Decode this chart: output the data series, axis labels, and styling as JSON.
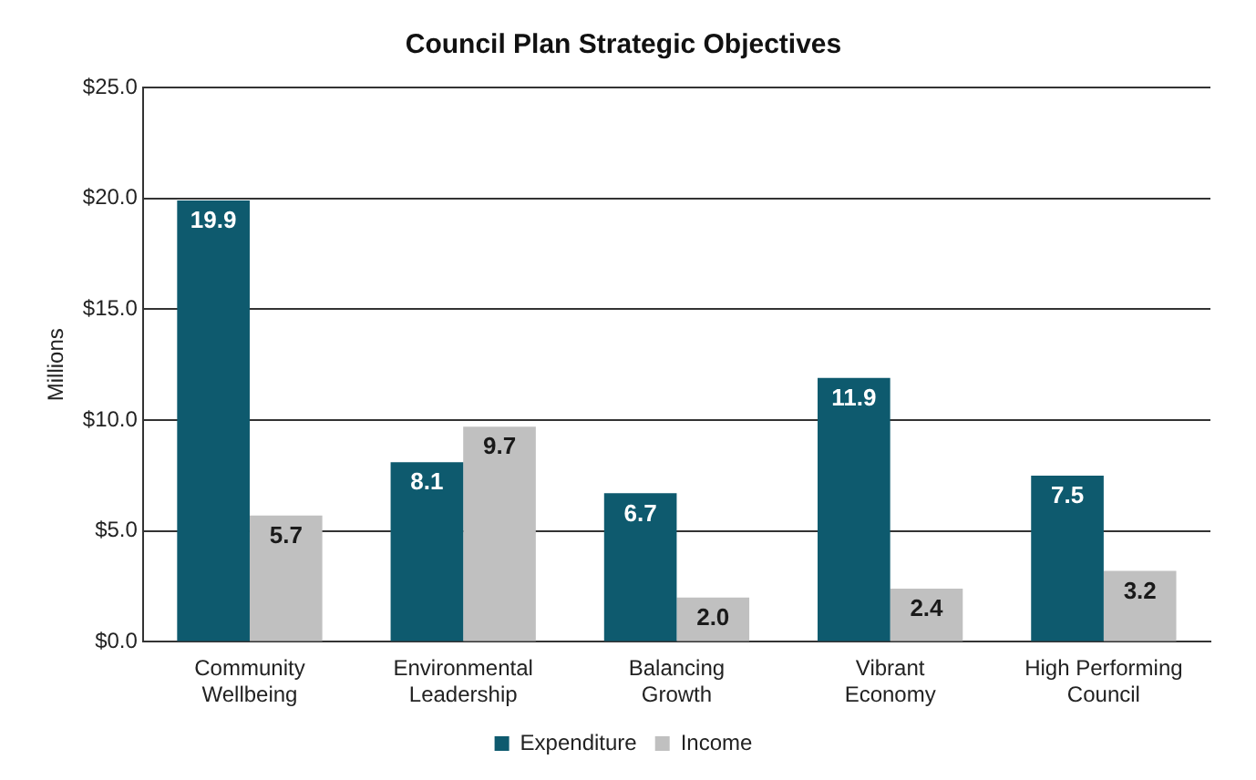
{
  "chart_data": {
    "type": "bar",
    "title": "Council Plan Strategic Objectives",
    "ylabel": "Millions",
    "categories": [
      "Community Wellbeing",
      "Environmental Leadership",
      "Balancing Growth",
      "Vibrant Economy",
      "High Performing Council"
    ],
    "series": [
      {
        "name": "Expenditure",
        "color": "#0e5a6e",
        "values": [
          19.9,
          8.1,
          6.7,
          11.9,
          7.5
        ],
        "value_labels": [
          "19.9",
          "8.1",
          "6.7",
          "11.9",
          "7.5"
        ]
      },
      {
        "name": "Income",
        "color": "#c0c0c0",
        "values": [
          5.7,
          9.7,
          2.0,
          2.4,
          3.2
        ],
        "value_labels": [
          "5.7",
          "9.7",
          "2.0",
          "2.4",
          "3.2"
        ]
      }
    ],
    "ylim": [
      0,
      25
    ],
    "yticks": [
      {
        "value": 0,
        "label": "$0.0"
      },
      {
        "value": 5,
        "label": "$5.0"
      },
      {
        "value": 10,
        "label": "$10.0"
      },
      {
        "value": 15,
        "label": "$15.0"
      },
      {
        "value": 20,
        "label": "$20.0"
      },
      {
        "value": 25,
        "label": "$25.0"
      }
    ],
    "grid": "y",
    "legend": "bottom"
  }
}
